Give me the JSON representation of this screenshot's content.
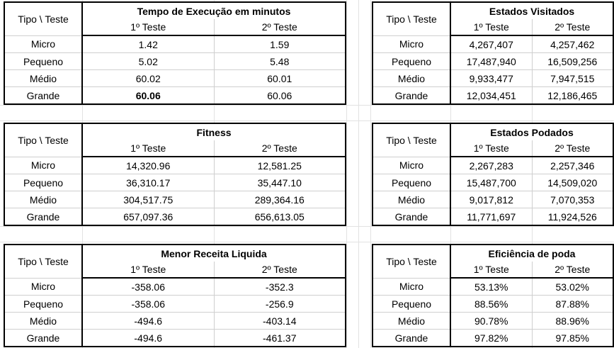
{
  "tables": [
    {
      "id": "t1",
      "corner": "Tipo \\ Teste",
      "title": "Tempo de Execução em minutos",
      "headers": [
        "1º Teste",
        "2º Teste"
      ],
      "rows": [
        {
          "label": "Micro",
          "v1": "1.42",
          "v2": "1.59"
        },
        {
          "label": "Pequeno",
          "v1": "5.02",
          "v2": "5.48"
        },
        {
          "label": "Médio",
          "v1": "60.02",
          "v2": "60.01"
        },
        {
          "label": "Grande",
          "v1": "60.06",
          "v2": "60.06"
        }
      ]
    },
    {
      "id": "t2",
      "corner": "Tipo \\ Teste",
      "title": "Estados Visitados",
      "headers": [
        "1º Teste",
        "2º Teste"
      ],
      "rows": [
        {
          "label": "Micro",
          "v1": "4,267,407",
          "v2": "4,257,462"
        },
        {
          "label": "Pequeno",
          "v1": "17,487,940",
          "v2": "16,509,256"
        },
        {
          "label": "Médio",
          "v1": "9,933,477",
          "v2": "7,947,515"
        },
        {
          "label": "Grande",
          "v1": "12,034,451",
          "v2": "12,186,465"
        }
      ]
    },
    {
      "id": "t3",
      "corner": "Tipo \\ Teste",
      "title": "Fitness",
      "headers": [
        "1º Teste",
        "2º Teste"
      ],
      "rows": [
        {
          "label": "Micro",
          "v1": "14,320.96",
          "v2": "12,581.25"
        },
        {
          "label": "Pequeno",
          "v1": "36,310.17",
          "v2": "35,447.10"
        },
        {
          "label": "Médio",
          "v1": "304,517.75",
          "v2": "289,364.16"
        },
        {
          "label": "Grande",
          "v1": "657,097.36",
          "v2": "656,613.05"
        }
      ]
    },
    {
      "id": "t4",
      "corner": "Tipo \\ Teste",
      "title": "Estados Podados",
      "headers": [
        "1º Teste",
        "2º Teste"
      ],
      "rows": [
        {
          "label": "Micro",
          "v1": "2,267,283",
          "v2": "2,257,346"
        },
        {
          "label": "Pequeno",
          "v1": "15,487,700",
          "v2": "14,509,020"
        },
        {
          "label": "Médio",
          "v1": "9,017,812",
          "v2": "7,070,353"
        },
        {
          "label": "Grande",
          "v1": "11,771,697",
          "v2": "11,924,526"
        }
      ]
    },
    {
      "id": "t5",
      "corner": "Tipo \\ Teste",
      "title": "Menor Receita Liquida",
      "headers": [
        "1º Teste",
        "2º Teste"
      ],
      "rows": [
        {
          "label": "Micro",
          "v1": "-358.06",
          "v2": "-352.3"
        },
        {
          "label": "Pequeno",
          "v1": "-358.06",
          "v2": "-256.9"
        },
        {
          "label": "Médio",
          "v1": "-494.6",
          "v2": "-403.14"
        },
        {
          "label": "Grande",
          "v1": "-494.6",
          "v2": "-461.37"
        }
      ]
    },
    {
      "id": "t6",
      "corner": "Tipo \\ Teste",
      "title": "Eficiência de poda",
      "headers": [
        "1º Teste",
        "2º Teste"
      ],
      "rows": [
        {
          "label": "Micro",
          "v1": "53.13%",
          "v2": "53.02%"
        },
        {
          "label": "Pequeno",
          "v1": "88.56%",
          "v2": "87.88%"
        },
        {
          "label": "Médio",
          "v1": "90.78%",
          "v2": "88.96%"
        },
        {
          "label": "Grande",
          "v1": "97.82%",
          "v2": "97.85%"
        }
      ]
    }
  ]
}
